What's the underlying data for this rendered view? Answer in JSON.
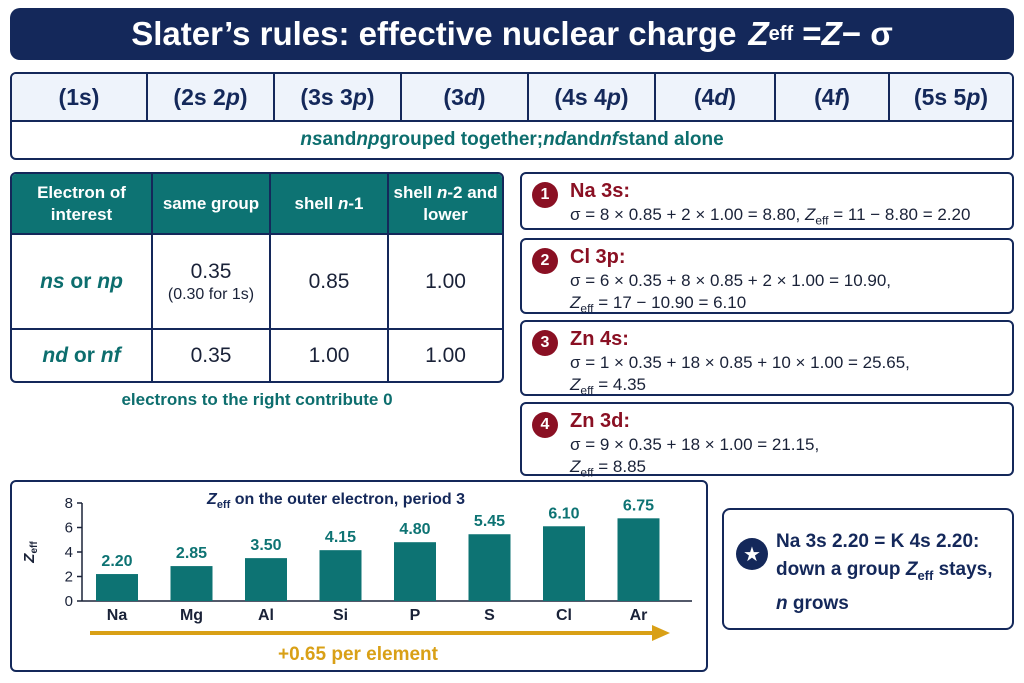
{
  "title": {
    "prefix": "Slater’s rules: effective nuclear charge",
    "z": "Z",
    "eff": "eff",
    "eq": "= ",
    "z2": "Z",
    "rest": " − σ"
  },
  "groups": {
    "cells": [
      {
        "pre": "(1s",
        "ital": "",
        "post": ")"
      },
      {
        "pre": "(2s 2",
        "ital": "p",
        "post": ")"
      },
      {
        "pre": "(3s 3",
        "ital": "p",
        "post": ")"
      },
      {
        "pre": "(3",
        "ital": "d",
        "post": ")"
      },
      {
        "pre": "(4s 4",
        "ital": "p",
        "post": ")"
      },
      {
        "pre": "(4",
        "ital": "d",
        "post": ")"
      },
      {
        "pre": "(4",
        "ital": "f",
        "post": ")"
      },
      {
        "pre": "(5s 5",
        "ital": "p",
        "post": ")"
      }
    ],
    "note": {
      "a": "ns",
      "b": " and ",
      "c": "np",
      "d": " grouped together; ",
      "e": "nd",
      "f": " and ",
      "g": "nf",
      "h": " stand alone"
    }
  },
  "shielding_table": {
    "headers": {
      "h1": "Electron of interest",
      "h2": "same group",
      "h3a": "shell ",
      "h3b": "n",
      "h3c": "-1",
      "h4a": "shell ",
      "h4b": "n",
      "h4c": "-2 and lower"
    },
    "rows": [
      {
        "label_a": "ns",
        "label_b": " or ",
        "label_c": "np",
        "same": "0.35",
        "same_note": "(0.30 for 1s)",
        "n1": "0.85",
        "n2": "1.00"
      },
      {
        "label_a": "nd",
        "label_b": " or ",
        "label_c": "nf",
        "same": "0.35",
        "same_note": "",
        "n1": "1.00",
        "n2": "1.00"
      }
    ],
    "footnote": "electrons to the right contribute 0"
  },
  "examples": [
    {
      "num": "1",
      "head": "Na 3s:",
      "line1": "σ = 8 × 0.85 + 2 × 1.00 = 8.80, ",
      "line1_z": "Z",
      "line1_eff": "eff",
      "line1_tail": " = 11 − 8.80 = 2.20",
      "line2": ""
    },
    {
      "num": "2",
      "head": "Cl 3p:",
      "line1": "σ = 6 × 0.35 + 8 × 0.85 + 2 × 1.00 = 10.90,",
      "line2_tail": " = 17 − 10.90 = 6.10"
    },
    {
      "num": "3",
      "head": "Zn 4s:",
      "line1": "σ = 1 × 0.35 + 18 × 0.85 + 10 × 1.00 = 25.65,",
      "line2_tail": " = 4.35"
    },
    {
      "num": "4",
      "head": "Zn 3d:",
      "line1": "σ = 9 × 0.35 + 18 × 1.00 = 21.15,",
      "line2_tail": " = 8.85"
    }
  ],
  "zeff_symbol": {
    "z": "Z",
    "eff": "eff"
  },
  "chart_data": {
    "type": "bar",
    "title_z": "Z",
    "title_eff": "eff",
    "title_rest": " on the outer electron, period 3",
    "categories": [
      "Na",
      "Mg",
      "Al",
      "Si",
      "P",
      "S",
      "Cl",
      "Ar"
    ],
    "values": [
      2.2,
      2.85,
      3.5,
      4.15,
      4.8,
      5.45,
      6.1,
      6.75
    ],
    "value_labels": [
      "2.20",
      "2.85",
      "3.50",
      "4.15",
      "4.80",
      "5.45",
      "6.10",
      "6.75"
    ],
    "ylabel_z": "Z",
    "ylabel_eff": "eff",
    "ylim": [
      0,
      8
    ],
    "yticks": [
      "0",
      "2",
      "4",
      "6",
      "8"
    ],
    "bar_color": "#0d7373",
    "trend_label": "+0.65 per element",
    "trend_color": "#d9a016"
  },
  "callout": {
    "line1": "Na 3s 2.20 = K 4s 2.20:",
    "line2a": "down a group ",
    "line2z": "Z",
    "line2eff": "eff",
    "line2b": " stays,",
    "line3a": "n",
    "line3b": " grows",
    "icon": "star-icon"
  },
  "colors": {
    "navy": "#14285a",
    "teal": "#0d7373",
    "maroon": "#8a1023",
    "gold": "#d9a016"
  }
}
